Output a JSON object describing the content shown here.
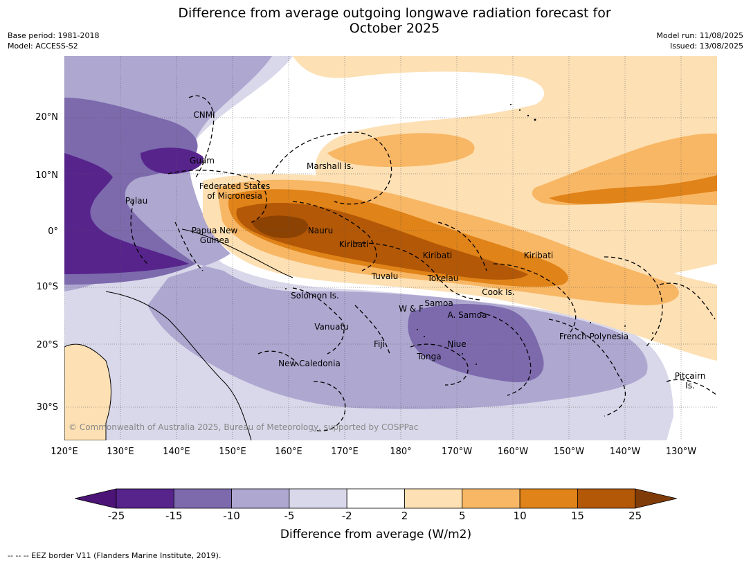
{
  "title": {
    "line1": "Difference from average outgoing longwave radiation forecast for",
    "line2": "October 2025"
  },
  "meta": {
    "base_period": "Base period: 1981-2018",
    "model": "Model: ACCESS-S2",
    "model_run": "Model run: 11/08/2025",
    "issued": "Issued: 13/08/2025"
  },
  "lat_ticks": [
    "20°N",
    "10°N",
    "0°",
    "10°S",
    "20°S",
    "30°S"
  ],
  "lon_ticks": [
    "120°E",
    "130°E",
    "140°E",
    "150°E",
    "160°E",
    "170°E",
    "180°",
    "170°W",
    "160°W",
    "150°W",
    "140°W",
    "130°W"
  ],
  "regions": [
    "CNMI",
    "Guam",
    "Marshall Is.",
    "Federated States\nof Micronesia",
    "Palau",
    "Papua New\nGuinea",
    "Nauru",
    "Kiribati",
    "Kiribati",
    "Kiribati",
    "Tuvalu",
    "Tokelau",
    "Cook Is.",
    "Solomon Is.",
    "W & F",
    "Samoa",
    "A. Samoa",
    "Vanuatu",
    "Fiji",
    "Niue",
    "Tonga",
    "French Polynesia",
    "New Caledonia",
    "Pitcairn\nIs."
  ],
  "copyright": "© Commonwealth of Australia 2025, Bureau of Meteorology, supported by COSPPac",
  "colorbar": {
    "ticks": [
      "-25",
      "-15",
      "-10",
      "-5",
      "-2",
      "2",
      "5",
      "10",
      "15",
      "25"
    ],
    "colors": [
      "#4d1478",
      "#57248c",
      "#7c6aad",
      "#aea7d0",
      "#d9d8ea",
      "#ffffff",
      "#fde0b4",
      "#f8b765",
      "#e08318",
      "#b35806",
      "#7f3b08"
    ],
    "label": "Difference from average (W/m2)"
  },
  "footnote": "--  --  -- EEZ border V11 (Flanders Marine Institute, 2019)."
}
